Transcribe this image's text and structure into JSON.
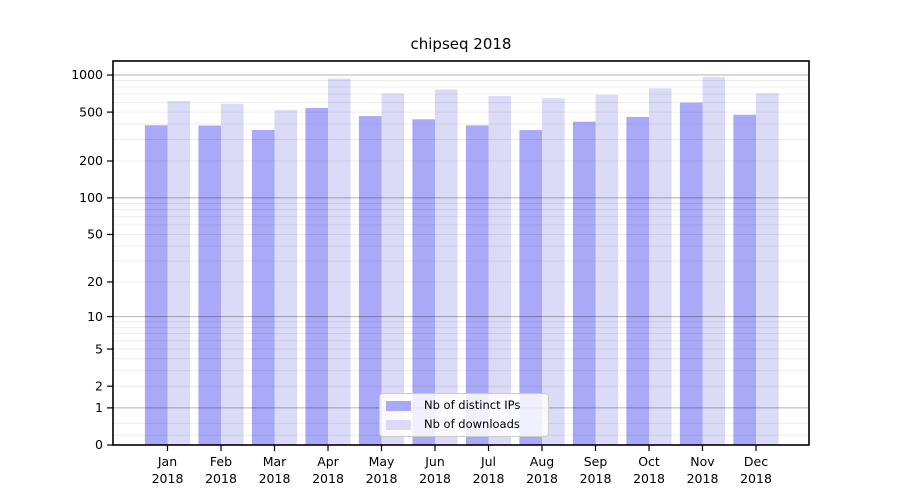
{
  "figure": {
    "title": "chipseq 2018",
    "background": "#ffffff"
  },
  "chart_data": {
    "type": "bar",
    "title": "chipseq 2018",
    "categories": [
      "Jan 2018",
      "Feb 2018",
      "Mar 2018",
      "Apr 2018",
      "May 2018",
      "Jun 2018",
      "Jul 2018",
      "Aug 2018",
      "Sep 2018",
      "Oct 2018",
      "Nov 2018",
      "Dec 2018"
    ],
    "series": [
      {
        "name": "Nb of distinct IPs",
        "color": "#a9a9f7",
        "values": [
          391,
          389,
          358,
          540,
          464,
          437,
          390,
          357,
          418,
          457,
          597,
          476
        ]
      },
      {
        "name": "Nb of downloads",
        "color": "#dbdbf8",
        "values": [
          615,
          585,
          520,
          935,
          710,
          765,
          675,
          648,
          690,
          780,
          960,
          713
        ]
      }
    ],
    "xlabel": "",
    "ylabel": "",
    "yscale": "symlog",
    "ylim": [
      0,
      1300
    ],
    "ytick_labels": [
      0,
      1,
      2,
      5,
      10,
      20,
      50,
      100,
      200,
      500,
      1000
    ],
    "grid": {
      "on": true,
      "drawn_above_bars": true,
      "major_values": [
        1,
        10,
        100,
        1000
      ],
      "minor_values": [
        0.2,
        0.5,
        2,
        3,
        4,
        5,
        6,
        7,
        8,
        9,
        20,
        30,
        40,
        50,
        60,
        70,
        80,
        90,
        200,
        300,
        400,
        500,
        600,
        700,
        800,
        900
      ],
      "major_color": "rgba(0,0,0,0.30)",
      "minor_color": "rgba(0,0,0,0.09)"
    },
    "legend": {
      "position": "lower center",
      "entries": [
        "Nb of distinct IPs",
        "Nb of downloads"
      ]
    },
    "axis_color": "#000000",
    "tick_label_color": "#000000"
  }
}
